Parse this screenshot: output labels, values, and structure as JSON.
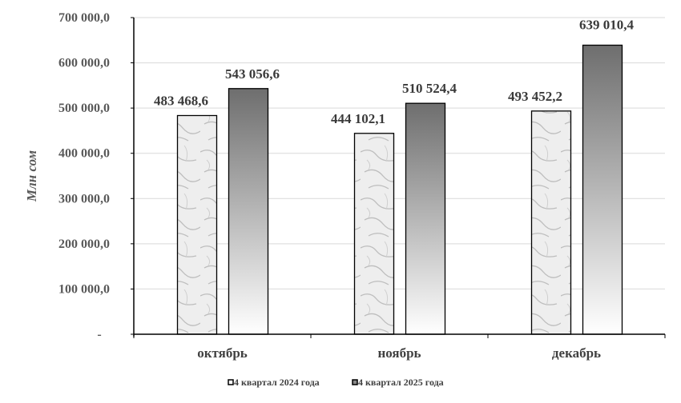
{
  "chart_data": {
    "type": "bar",
    "categories": [
      "октябрь",
      "ноябрь",
      "декабрь"
    ],
    "series": [
      {
        "name": "4 квартал 2024 года",
        "values": [
          483468.6,
          444102.1,
          493452.2
        ],
        "labels": [
          "483 468,6",
          "444 102,1",
          "493 452,2"
        ],
        "fill": "marble-white"
      },
      {
        "name": "4 квартал 2025 года",
        "values": [
          543056.6,
          510524.4,
          639010.4
        ],
        "labels": [
          "543 056,6",
          "510 524,4",
          "639 010,4"
        ],
        "fill": "gray-gradient"
      }
    ],
    "ylabel": "Млн сом",
    "ylim": [
      0,
      700000
    ],
    "yticks": [
      0,
      100000,
      200000,
      300000,
      400000,
      500000,
      600000,
      700000
    ],
    "ytick_labels": [
      "-",
      "100 000,0",
      "200 000,0",
      "300 000,0",
      "400 000,0",
      "500 000,0",
      "600 000,0",
      "700 000,0"
    ],
    "grid": true,
    "legend": "bottom"
  }
}
